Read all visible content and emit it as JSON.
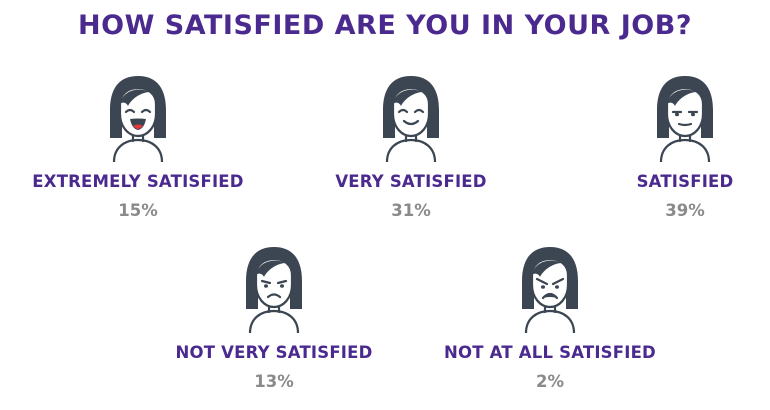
{
  "title": "HOW SATISFIED ARE YOU IN YOUR JOB?",
  "colors": {
    "title": "#4b2a8f",
    "label": "#4b2a8f",
    "percent": "#8a8a8a",
    "hair": "#3c4652"
  },
  "items": [
    {
      "label": "EXTREMELY SATISFIED",
      "percent": "15%",
      "icon": "very-happy-face-icon"
    },
    {
      "label": "VERY SATISFIED",
      "percent": "31%",
      "icon": "happy-face-icon"
    },
    {
      "label": "SATISFIED",
      "percent": "39%",
      "icon": "neutral-face-icon"
    },
    {
      "label": "NOT VERY SATISFIED",
      "percent": "13%",
      "icon": "unhappy-face-icon"
    },
    {
      "label": "NOT AT ALL SATISFIED",
      "percent": "2%",
      "icon": "angry-face-icon"
    }
  ]
}
